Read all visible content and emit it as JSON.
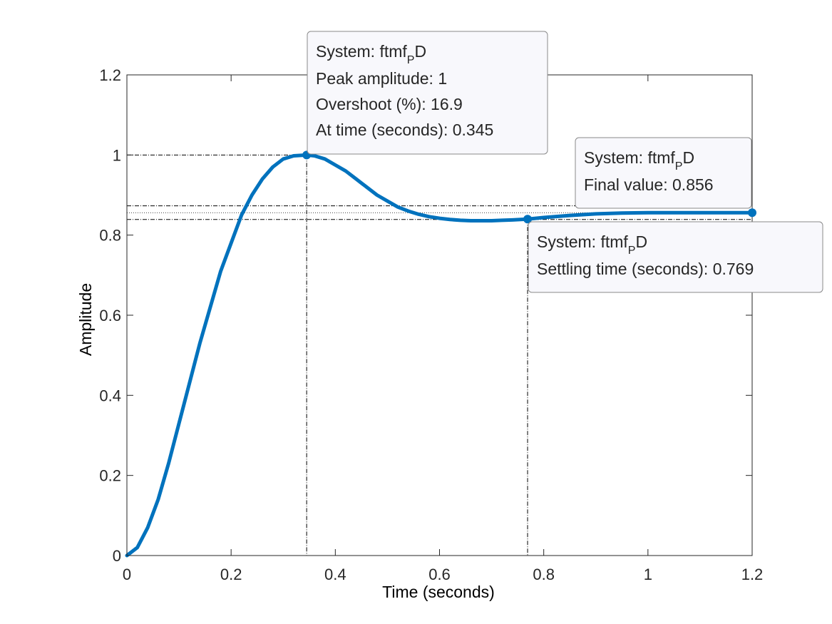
{
  "chart_data": {
    "type": "line",
    "xlabel": "Time (seconds)",
    "ylabel": "Amplitude",
    "xlim": [
      0,
      1.2
    ],
    "ylim": [
      0,
      1.2
    ],
    "xticks": [
      0,
      0.2,
      0.4,
      0.6,
      0.8,
      1,
      1.2
    ],
    "xtick_labels": [
      "0",
      "0.2",
      "0.4",
      "0.6",
      "0.8",
      "1",
      "1.2"
    ],
    "yticks": [
      0,
      0.2,
      0.4,
      0.6,
      0.8,
      1,
      1.2
    ],
    "ytick_labels": [
      "0",
      "0.2",
      "0.4",
      "0.6",
      "0.8",
      "1",
      "1.2"
    ],
    "grid": false,
    "series": [
      {
        "color": "#0072BD",
        "x": [
          0,
          0.02,
          0.04,
          0.06,
          0.08,
          0.1,
          0.12,
          0.14,
          0.16,
          0.18,
          0.2,
          0.22,
          0.24,
          0.26,
          0.28,
          0.3,
          0.32,
          0.345,
          0.36,
          0.38,
          0.4,
          0.42,
          0.44,
          0.46,
          0.48,
          0.5,
          0.52,
          0.54,
          0.56,
          0.58,
          0.6,
          0.62,
          0.64,
          0.66,
          0.68,
          0.7,
          0.72,
          0.74,
          0.769,
          0.8,
          0.85,
          0.9,
          0.95,
          1.0,
          1.05,
          1.1,
          1.15,
          1.2
        ],
        "y": [
          0,
          0.02,
          0.07,
          0.14,
          0.23,
          0.33,
          0.43,
          0.53,
          0.62,
          0.71,
          0.78,
          0.85,
          0.9,
          0.94,
          0.97,
          0.99,
          0.998,
          1.0,
          0.998,
          0.99,
          0.975,
          0.96,
          0.94,
          0.92,
          0.9,
          0.885,
          0.87,
          0.86,
          0.852,
          0.846,
          0.842,
          0.839,
          0.837,
          0.836,
          0.836,
          0.836,
          0.837,
          0.838,
          0.84,
          0.844,
          0.849,
          0.853,
          0.855,
          0.856,
          0.856,
          0.856,
          0.856,
          0.856
        ]
      }
    ],
    "annotations": [
      {
        "id": "peak",
        "x": 0.345,
        "y": 1.0,
        "system_prefix": "System: ftmf",
        "system_sub": "P",
        "system_suffix": "D",
        "lines": [
          "Peak amplitude: 1",
          "Overshoot (%): 16.9",
          "At time (seconds): 0.345"
        ]
      },
      {
        "id": "final",
        "x": 1.2,
        "y": 0.856,
        "system_prefix": "System: ftmf",
        "system_sub": "P",
        "system_suffix": "D",
        "lines": [
          "Final value: 0.856"
        ]
      },
      {
        "id": "settling",
        "x": 0.769,
        "y": 0.84,
        "system_prefix": "System: ftmf",
        "system_sub": "P",
        "system_suffix": "D",
        "lines": [
          "Settling time (seconds): 0.769"
        ]
      }
    ],
    "settling_band": [
      0.839,
      0.873
    ],
    "final_value": 0.856
  }
}
